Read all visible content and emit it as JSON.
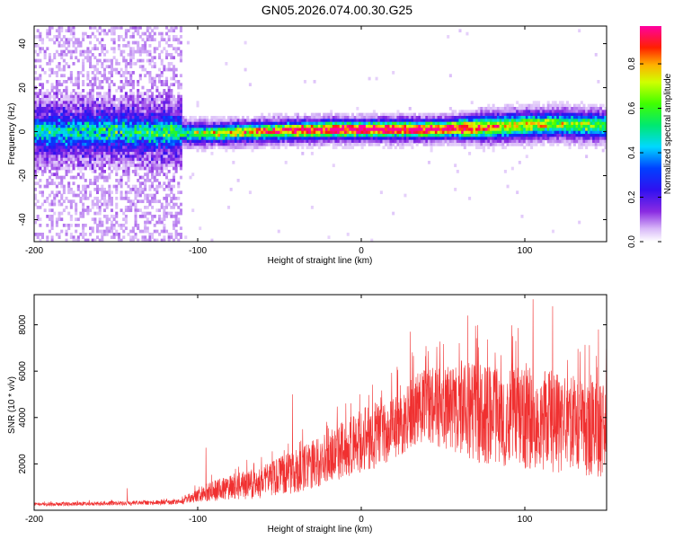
{
  "title": "GN05.2026.074.00.30.G25",
  "chart_data": [
    {
      "type": "heatmap",
      "title": "GN05.2026.074.00.30.G25",
      "xlabel": "Height of straight line (km)",
      "ylabel": "Frequency (Hz)",
      "xlim": [
        -200,
        150
      ],
      "ylim": [
        -50,
        48
      ],
      "x_ticks": [
        -200,
        -100,
        0,
        100
      ],
      "x_tick_labels": [
        "-200",
        "-100",
        "0",
        "100"
      ],
      "y_ticks": [
        -40,
        -20,
        0,
        20,
        40
      ],
      "y_tick_labels": [
        "-40",
        "-20",
        "0",
        "20",
        "40"
      ],
      "colorbar": {
        "label": "Normalized spectral amplitude",
        "range": [
          0,
          0.97
        ],
        "ticks": [
          0.0,
          0.2,
          0.4,
          0.6,
          0.8
        ],
        "tick_labels": [
          "0.0",
          "0.2",
          "0.4",
          "0.6",
          "0.8"
        ]
      },
      "ridge": {
        "x": [
          -200,
          -150,
          -110,
          -100,
          -80,
          -60,
          -40,
          -20,
          0,
          20,
          40,
          60,
          80,
          100,
          120,
          150
        ],
        "frequency": [
          0,
          0,
          -0.5,
          -1,
          -0.5,
          0,
          0.5,
          1,
          1,
          1,
          1,
          1.5,
          2,
          3,
          3.5,
          2.5
        ],
        "amplitude": [
          0.25,
          0.28,
          0.3,
          0.45,
          0.55,
          0.65,
          0.75,
          0.85,
          0.9,
          0.88,
          0.85,
          0.8,
          0.65,
          0.55,
          0.5,
          0.45
        ]
      },
      "noise_region_x": [
        -200,
        -110
      ]
    },
    {
      "type": "line",
      "xlabel": "Height of straight line (km)",
      "ylabel": "SNR (10 * v/v)",
      "xlim": [
        -200,
        150
      ],
      "ylim": [
        0,
        9300
      ],
      "x_ticks": [
        -200,
        -100,
        0,
        100
      ],
      "x_tick_labels": [
        "-200",
        "-100",
        "0",
        "100"
      ],
      "y_ticks": [
        2000,
        4000,
        6000,
        8000
      ],
      "y_tick_labels": [
        "2000",
        "4000",
        "6000",
        "8000"
      ],
      "color": "#f03030",
      "envelope": {
        "x": [
          -200,
          -150,
          -110,
          -100,
          -80,
          -60,
          -40,
          -20,
          0,
          20,
          30,
          40,
          60,
          80,
          100,
          120,
          150
        ],
        "mean": [
          250,
          300,
          350,
          700,
          1000,
          1200,
          1700,
          2300,
          3000,
          3500,
          4200,
          4600,
          4300,
          4100,
          4000,
          3800,
          3400
        ],
        "spread": [
          80,
          90,
          110,
          350,
          550,
          700,
          950,
          1200,
          1400,
          1500,
          1500,
          1600,
          2000,
          2200,
          2200,
          2200,
          2000
        ]
      },
      "notable_peaks": [
        {
          "x": -143,
          "y": 950
        },
        {
          "x": -95,
          "y": 2700
        },
        {
          "x": -42,
          "y": 5000
        },
        {
          "x": 30,
          "y": 7700
        },
        {
          "x": 65,
          "y": 8400
        },
        {
          "x": 105,
          "y": 9100
        },
        {
          "x": 117,
          "y": 8800
        },
        {
          "x": 145,
          "y": 7800
        }
      ]
    }
  ]
}
